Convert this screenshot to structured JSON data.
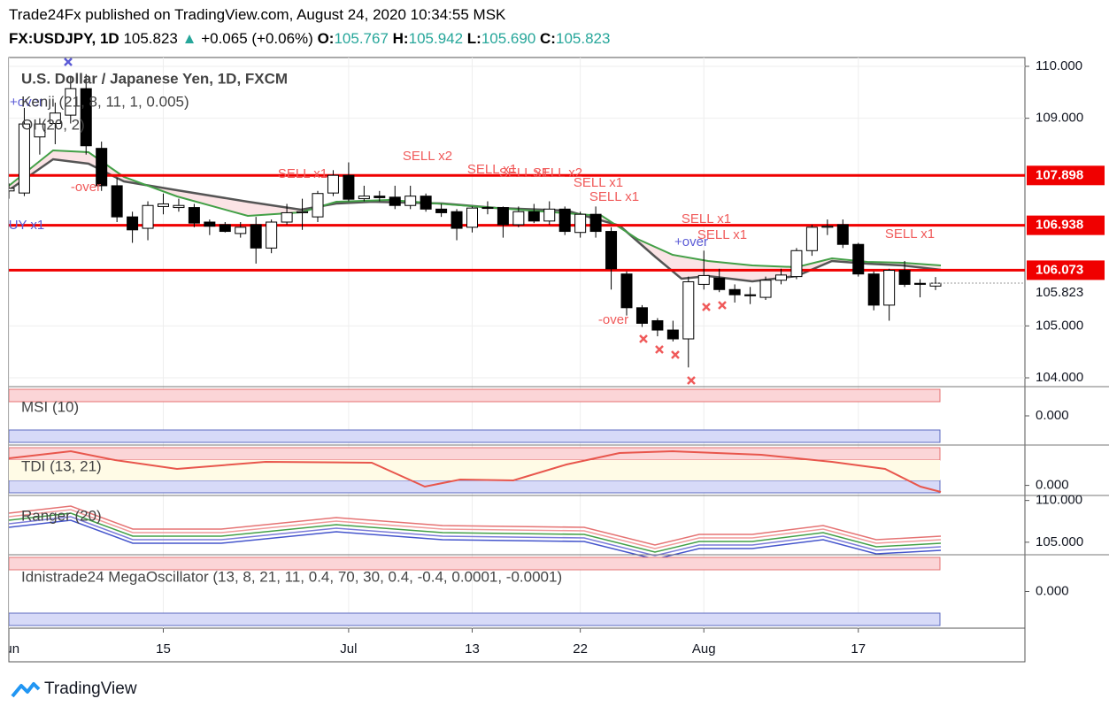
{
  "header": {
    "line1": "Trade24Fx published on TradingView.com, August 24, 2020 10:34:55 MSK",
    "symbol": "FX:USDJPY, 1D",
    "last": "105.823",
    "change": "+0.065 (+0.06%)",
    "o_label": "O:",
    "o": "105.767",
    "h_label": "H:",
    "h": "105.942",
    "l_label": "L:",
    "l": "105.690",
    "c_label": "C:",
    "c": "105.823"
  },
  "footer": "TradingView",
  "chart_data": [
    {
      "type": "candlestick",
      "title": "U.S. Dollar / Japanese Yen, 1D, FXCM",
      "indicators": [
        "Kenji (21, 8, 11, 1, 0.005)",
        "OI (20, 2)"
      ],
      "categories": [
        "Jun",
        null,
        null,
        null,
        null,
        null,
        null,
        null,
        null,
        null,
        "15",
        null,
        null,
        null,
        null,
        null,
        null,
        null,
        null,
        null,
        null,
        null,
        "Jul",
        null,
        null,
        null,
        null,
        null,
        null,
        null,
        "13",
        null,
        null,
        null,
        null,
        null,
        null,
        "22",
        null,
        null,
        null,
        null,
        null,
        null,
        null,
        "Aug",
        null,
        null,
        null,
        null,
        null,
        null,
        null,
        null,
        null,
        "17",
        null,
        null,
        null,
        null,
        null
      ],
      "open": [
        107.6,
        107.56,
        108.64,
        108.9,
        109.06,
        109.57,
        108.42,
        107.7,
        107.1,
        106.88,
        107.3,
        107.28,
        107.28,
        107.0,
        106.95,
        106.78,
        106.95,
        106.5,
        107.0,
        107.18,
        107.1,
        107.56,
        107.9,
        107.45,
        107.5,
        107.48,
        107.32,
        107.5,
        107.25,
        107.2,
        106.9,
        107.27,
        107.28,
        106.95,
        107.2,
        107.02,
        107.25,
        106.8,
        107.15,
        106.82,
        106.0,
        105.35,
        105.1,
        104.92,
        104.75,
        105.8,
        105.92,
        105.7,
        105.6,
        105.55,
        105.88,
        105.95,
        106.45,
        106.9,
        106.95,
        106.57,
        106.0,
        105.4,
        106.07,
        105.82,
        105.767
      ],
      "high": [
        107.75,
        109.2,
        109.0,
        109.3,
        109.8,
        109.85,
        108.55,
        107.85,
        107.2,
        107.4,
        107.55,
        107.45,
        107.35,
        107.05,
        107.0,
        107.0,
        107.1,
        107.05,
        107.35,
        107.45,
        107.6,
        108.0,
        108.15,
        107.7,
        107.6,
        107.7,
        107.7,
        107.55,
        107.35,
        107.25,
        107.3,
        107.4,
        107.3,
        107.3,
        107.35,
        107.4,
        107.3,
        107.2,
        107.3,
        106.9,
        106.05,
        105.4,
        105.15,
        105.1,
        105.95,
        106.45,
        106.1,
        105.8,
        105.75,
        105.95,
        106.1,
        106.5,
        106.95,
        107.05,
        107.05,
        106.6,
        106.05,
        106.1,
        106.25,
        105.9,
        105.942
      ],
      "low": [
        107.45,
        107.5,
        108.3,
        108.5,
        108.9,
        108.3,
        107.6,
        107.0,
        106.6,
        106.65,
        107.15,
        107.2,
        106.9,
        106.75,
        106.8,
        106.7,
        106.2,
        106.4,
        106.95,
        106.85,
        107.0,
        107.5,
        107.4,
        107.4,
        107.4,
        107.25,
        107.25,
        107.2,
        107.1,
        106.65,
        106.8,
        107.15,
        106.7,
        106.9,
        106.98,
        106.95,
        106.75,
        106.7,
        106.7,
        105.7,
        105.2,
        104.98,
        104.8,
        104.7,
        104.2,
        105.7,
        105.65,
        105.45,
        105.42,
        105.5,
        105.8,
        105.9,
        106.35,
        106.75,
        106.5,
        105.95,
        105.3,
        105.1,
        105.75,
        105.55,
        105.69
      ],
      "close": [
        107.65,
        108.89,
        108.89,
        109.1,
        109.57,
        108.47,
        107.7,
        107.1,
        106.85,
        107.32,
        107.35,
        107.32,
        106.98,
        106.92,
        106.82,
        106.9,
        106.5,
        107.0,
        107.18,
        107.2,
        107.55,
        107.9,
        107.44,
        107.5,
        107.47,
        107.32,
        107.5,
        107.25,
        107.18,
        106.88,
        107.27,
        107.28,
        106.95,
        107.2,
        107.02,
        107.25,
        106.82,
        107.15,
        106.82,
        106.1,
        105.35,
        105.05,
        104.92,
        104.75,
        105.85,
        105.97,
        105.7,
        105.6,
        105.58,
        105.88,
        105.98,
        106.45,
        106.9,
        106.92,
        106.57,
        106.0,
        105.4,
        106.07,
        105.8,
        105.8,
        105.823
      ],
      "ylim": [
        103.83,
        110.17
      ],
      "yticks": [
        {
          "value": 104,
          "label": "104.000"
        },
        {
          "value": 105,
          "label": "105.000"
        },
        {
          "value": 109,
          "label": "109.000"
        },
        {
          "value": 110,
          "label": "110.000"
        }
      ],
      "levels": [
        107.898,
        106.938,
        106.073
      ],
      "level_color": "#f00000",
      "last_price": 105.823,
      "up_color": "#ffffff",
      "down_color": "#000000",
      "grid": true,
      "annotations": [
        "SELL x1",
        "SELL x2",
        "SELL x1",
        "SELL x1",
        "SELL x2",
        "SELL x1",
        "SELL x1",
        "SELL x1",
        "SELL x1",
        "SELL x1",
        "+over",
        "-over",
        "-over",
        "+over",
        "UY x1"
      ]
    },
    {
      "type": "oscillator",
      "title": "MSI (10)",
      "ylim": [
        -1,
        1
      ],
      "yticks": [
        {
          "value": 0,
          "label": "0.000"
        }
      ]
    },
    {
      "type": "oscillator",
      "title": "TDI (13, 21)",
      "ylim": [
        -25,
        100
      ],
      "yticks": [
        {
          "value": 0,
          "label": "0.000"
        }
      ]
    },
    {
      "type": "oscillator",
      "title": "Ranger (20)",
      "ylim": [
        103.5,
        110.6
      ],
      "yticks": [
        {
          "value": 110,
          "label": "110.000"
        },
        {
          "value": 105,
          "label": "105.000"
        }
      ]
    },
    {
      "type": "oscillator",
      "title": "Idnistrade24 MegaOscillator (13, 8, 21, 11, 0.4, 70, 30, 0.4, -0.4, 0.0001, -0.0001)",
      "ylim": [
        -1,
        1
      ],
      "yticks": [
        {
          "value": 0,
          "label": "0.000"
        }
      ]
    }
  ]
}
